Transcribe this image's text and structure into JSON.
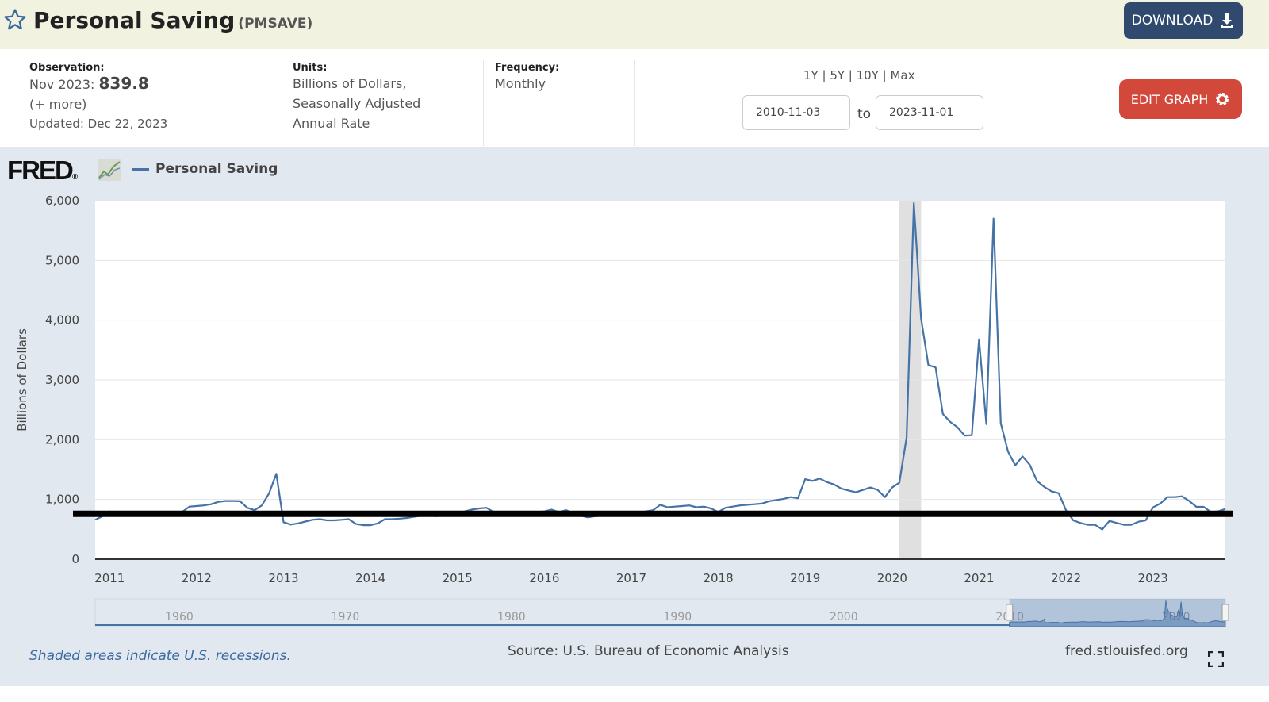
{
  "header": {
    "title": "Personal Saving",
    "series_code": "(PMSAVE)",
    "download_label": "DOWNLOAD"
  },
  "info": {
    "observation_label": "Observation:",
    "observation_period": "Nov 2023:",
    "observation_value": "839.8",
    "more_link": "(+ more)",
    "updated": "Updated: Dec 22, 2023",
    "units_label": "Units:",
    "units_lines": [
      "Billions of Dollars,",
      "Seasonally Adjusted",
      "Annual Rate"
    ],
    "frequency_label": "Frequency:",
    "frequency_value": "Monthly"
  },
  "range": {
    "buttons": [
      "1Y",
      "5Y",
      "10Y",
      "Max"
    ],
    "start": "2010-11-03",
    "to_label": "to",
    "end": "2023-11-01"
  },
  "edit_graph_label": "EDIT GRAPH",
  "logo": "FRED",
  "colors": {
    "series": "#4572a7",
    "recession": "#e0e0e0",
    "edit": "#d2483a",
    "download": "#2f4a6e",
    "reference_line": "#000000"
  },
  "chart_data": {
    "type": "line",
    "title": "",
    "ylabel": "Billions of Dollars",
    "ylim": [
      0,
      6000
    ],
    "yticks": [
      "0",
      "1,000",
      "2,000",
      "3,000",
      "4,000",
      "5,000",
      "6,000"
    ],
    "xticks": [
      "2011",
      "2012",
      "2013",
      "2014",
      "2015",
      "2016",
      "2017",
      "2018",
      "2019",
      "2020",
      "2021",
      "2022",
      "2023"
    ],
    "grid": true,
    "legend": "top-left",
    "series": [
      {
        "name": "Personal Saving",
        "x": [
          "2010-11",
          "2010-12",
          "2011-01",
          "2011-02",
          "2011-03",
          "2011-04",
          "2011-05",
          "2011-06",
          "2011-07",
          "2011-08",
          "2011-09",
          "2011-10",
          "2011-11",
          "2011-12",
          "2012-01",
          "2012-02",
          "2012-03",
          "2012-04",
          "2012-05",
          "2012-06",
          "2012-07",
          "2012-08",
          "2012-09",
          "2012-10",
          "2012-11",
          "2012-12",
          "2013-01",
          "2013-02",
          "2013-03",
          "2013-04",
          "2013-05",
          "2013-06",
          "2013-07",
          "2013-08",
          "2013-09",
          "2013-10",
          "2013-11",
          "2013-12",
          "2014-01",
          "2014-02",
          "2014-03",
          "2014-04",
          "2014-05",
          "2014-06",
          "2014-07",
          "2014-08",
          "2014-09",
          "2014-10",
          "2014-11",
          "2014-12",
          "2015-01",
          "2015-02",
          "2015-03",
          "2015-04",
          "2015-05",
          "2015-06",
          "2015-07",
          "2015-08",
          "2015-09",
          "2015-10",
          "2015-11",
          "2015-12",
          "2016-01",
          "2016-02",
          "2016-03",
          "2016-04",
          "2016-05",
          "2016-06",
          "2016-07",
          "2016-08",
          "2016-09",
          "2016-10",
          "2016-11",
          "2016-12",
          "2017-01",
          "2017-02",
          "2017-03",
          "2017-04",
          "2017-05",
          "2017-06",
          "2017-07",
          "2017-08",
          "2017-09",
          "2017-10",
          "2017-11",
          "2017-12",
          "2018-01",
          "2018-02",
          "2018-03",
          "2018-04",
          "2018-05",
          "2018-06",
          "2018-07",
          "2018-08",
          "2018-09",
          "2018-10",
          "2018-11",
          "2018-12",
          "2019-01",
          "2019-02",
          "2019-03",
          "2019-04",
          "2019-05",
          "2019-06",
          "2019-07",
          "2019-08",
          "2019-09",
          "2019-10",
          "2019-11",
          "2019-12",
          "2020-01",
          "2020-02",
          "2020-03",
          "2020-04",
          "2020-05",
          "2020-06",
          "2020-07",
          "2020-08",
          "2020-09",
          "2020-10",
          "2020-11",
          "2020-12",
          "2021-01",
          "2021-02",
          "2021-03",
          "2021-04",
          "2021-05",
          "2021-06",
          "2021-07",
          "2021-08",
          "2021-09",
          "2021-10",
          "2021-11",
          "2021-12",
          "2022-01",
          "2022-02",
          "2022-03",
          "2022-04",
          "2022-05",
          "2022-06",
          "2022-07",
          "2022-08",
          "2022-09",
          "2022-10",
          "2022-11",
          "2022-12",
          "2023-01",
          "2023-02",
          "2023-03",
          "2023-04",
          "2023-05",
          "2023-06",
          "2023-07",
          "2023-08",
          "2023-09",
          "2023-10",
          "2023-11"
        ],
        "values": [
          660,
          720,
          800,
          770,
          760,
          770,
          760,
          770,
          780,
          770,
          760,
          770,
          790,
          880,
          890,
          900,
          920,
          960,
          975,
          975,
          970,
          860,
          820,
          900,
          1100,
          1430,
          620,
          580,
          600,
          630,
          660,
          670,
          650,
          650,
          660,
          670,
          590,
          570,
          570,
          600,
          670,
          670,
          680,
          690,
          710,
          730,
          740,
          720,
          740,
          730,
          760,
          800,
          830,
          850,
          860,
          790,
          770,
          760,
          760,
          770,
          780,
          790,
          800,
          830,
          790,
          820,
          770,
          730,
          700,
          720,
          730,
          730,
          740,
          760,
          740,
          780,
          800,
          820,
          910,
          870,
          880,
          890,
          900,
          870,
          880,
          850,
          790,
          860,
          880,
          900,
          910,
          920,
          930,
          970,
          990,
          1010,
          1040,
          1020,
          1340,
          1310,
          1350,
          1290,
          1250,
          1180,
          1150,
          1120,
          1160,
          1200,
          1160,
          1040,
          1200,
          1280,
          2040,
          5960,
          4030,
          3250,
          3210,
          2430,
          2300,
          2210,
          2070,
          2075,
          3680,
          2260,
          5700,
          2275,
          1800,
          1570,
          1720,
          1580,
          1310,
          1210,
          1135,
          1105,
          820,
          650,
          607,
          576,
          576,
          498,
          641,
          607,
          576,
          576,
          628,
          651,
          867,
          931,
          1040,
          1040,
          1053,
          975,
          876,
          876,
          789,
          800,
          840
        ]
      }
    ],
    "recessions": [
      [
        "2020-02",
        "2020-04"
      ]
    ],
    "reference_line": 760,
    "navigator": {
      "labels": [
        "1960",
        "1970",
        "1980",
        "1990",
        "2000",
        "2010",
        "2020"
      ],
      "selected": [
        "2010-11",
        "2023-11"
      ]
    }
  },
  "footer": {
    "recession_note": "Shaded areas indicate U.S. recessions.",
    "source": "Source: U.S. Bureau of Economic Analysis",
    "site": "fred.stlouisfed.org"
  }
}
